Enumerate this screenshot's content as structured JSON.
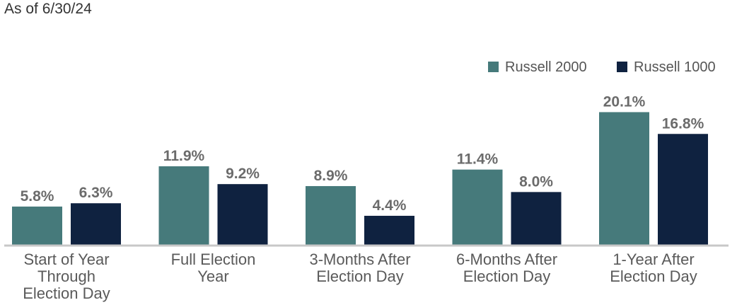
{
  "header": {
    "as_of": "As of 6/30/24"
  },
  "chart_data": {
    "type": "bar",
    "title": "",
    "xlabel": "",
    "ylabel": "",
    "ylim": [
      0,
      24
    ],
    "grid": false,
    "legend_position": "top-right",
    "categories": [
      [
        "Start of Year",
        "Through",
        "Election Day"
      ],
      [
        "Full Election",
        "Year"
      ],
      [
        "3-Months After",
        "Election Day"
      ],
      [
        "6-Months After",
        "Election Day"
      ],
      [
        "1-Year After",
        "Election Day"
      ]
    ],
    "series": [
      {
        "name": "Russell 2000",
        "color": "#467A7B",
        "values": [
          5.8,
          11.9,
          8.9,
          11.4,
          20.1
        ],
        "labels": [
          "5.8%",
          "11.9%",
          "8.9%",
          "11.4%",
          "20.1%"
        ]
      },
      {
        "name": "Russell 1000",
        "color": "#0F2240",
        "values": [
          6.3,
          9.2,
          4.4,
          8.0,
          16.8
        ],
        "labels": [
          "6.3%",
          "9.2%",
          "4.4%",
          "8.0%",
          "16.8%"
        ]
      }
    ],
    "axis_color": "#C8C8C8"
  }
}
